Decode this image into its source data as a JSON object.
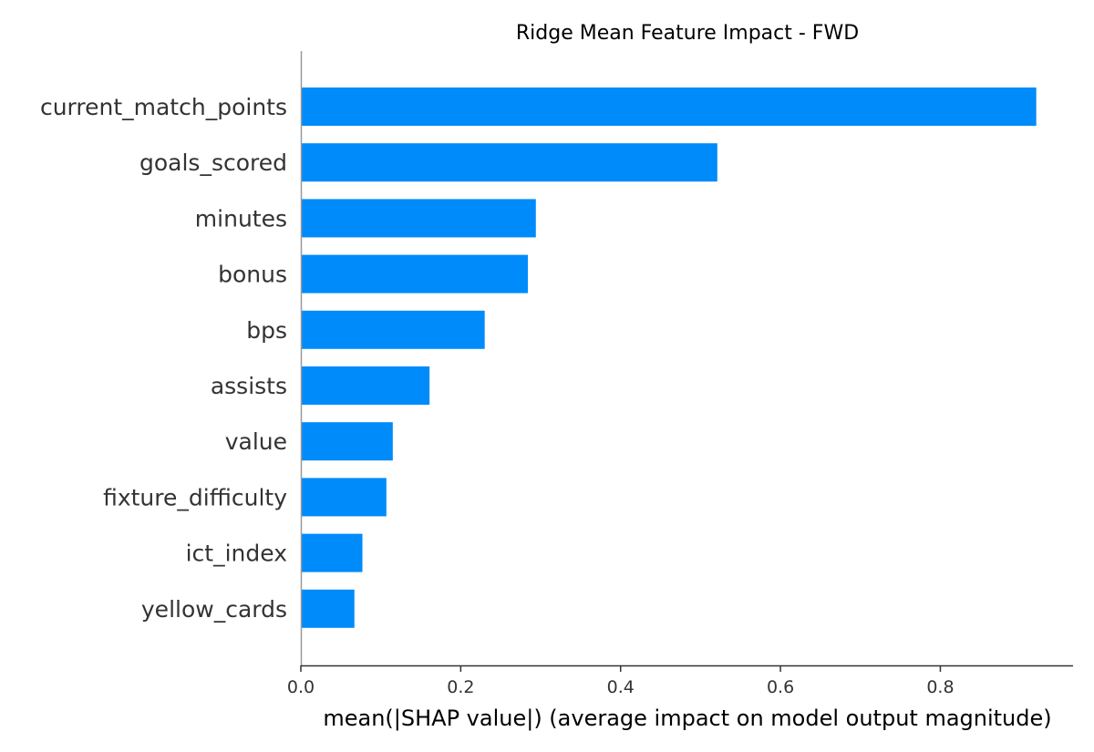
{
  "chart_data": {
    "type": "bar",
    "orientation": "horizontal",
    "title": "Ridge Mean Feature Impact - FWD",
    "xlabel": "mean(|SHAP value|) (average impact on model output magnitude)",
    "ylabel": "",
    "categories": [
      "current_match_points",
      "goals_scored",
      "minutes",
      "bonus",
      "bps",
      "assists",
      "value",
      "fixture_difficulty",
      "ict_index",
      "yellow_cards"
    ],
    "values": [
      0.92,
      0.521,
      0.294,
      0.284,
      0.23,
      0.161,
      0.115,
      0.107,
      0.077,
      0.067
    ],
    "xlim": [
      0,
      0.966
    ],
    "xticks": [
      0.0,
      0.2,
      0.4,
      0.6,
      0.8
    ],
    "xtick_labels": [
      "0.0",
      "0.2",
      "0.4",
      "0.6",
      "0.8"
    ],
    "grid": false,
    "bar_color": "#008bfb"
  }
}
